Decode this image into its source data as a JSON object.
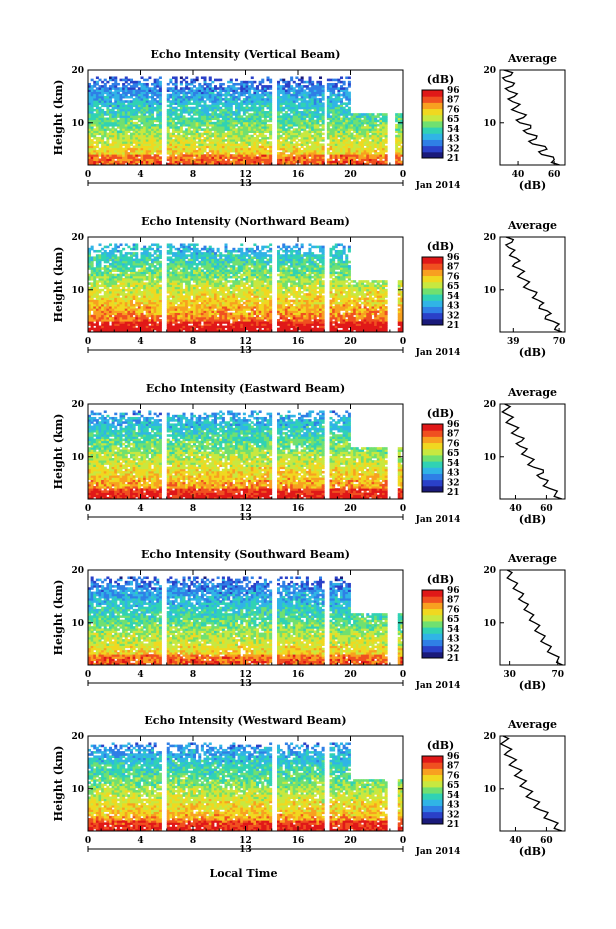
{
  "colorbar": {
    "unit": "(dB)",
    "ticks": [
      "96",
      "87",
      "76",
      "65",
      "54",
      "43",
      "32",
      "21"
    ],
    "colors": [
      "#1a1a7a",
      "#2a40c8",
      "#2f7fe6",
      "#30b4e6",
      "#30d2b4",
      "#70e070",
      "#c8e840",
      "#f0d820",
      "#f8a020",
      "#f05020",
      "#e01818"
    ]
  },
  "x_axis": {
    "ticks": [
      "0",
      "4",
      "8",
      "12",
      "16",
      "20",
      "0"
    ],
    "date_day": "13",
    "date_suffix": "Jan 2014",
    "label": "Local Time"
  },
  "y_axis": {
    "label": "Height (km)",
    "ticks": [
      "20",
      "10"
    ]
  },
  "avg_xlabel": "(dB)",
  "avg_title": "Average",
  "chart_data": [
    {
      "type": "heatmap",
      "title": "Echo Intensity (Vertical Beam)",
      "xlabel": "",
      "ylabel": "Height (km)",
      "x_range_hours": [
        0,
        24
      ],
      "y_range_km": [
        2,
        20
      ],
      "data_gaps_hours": [
        [
          5.6,
          5.9
        ],
        [
          14.0,
          14.3
        ],
        [
          18.0,
          18.2
        ],
        [
          22.8,
          23.4
        ]
      ],
      "avg_profile": {
        "xticks": [
          "40",
          "60"
        ],
        "xlim": [
          30,
          66
        ],
        "height_km": [
          2,
          3,
          4,
          5,
          6,
          7,
          8,
          9,
          10,
          11,
          12,
          13,
          14,
          15,
          16,
          17,
          18,
          19,
          20
        ],
        "values_db": [
          63,
          60,
          53,
          56,
          48,
          50,
          45,
          47,
          41,
          43,
          40,
          39,
          37,
          38,
          35,
          37,
          33,
          36,
          32
        ]
      }
    },
    {
      "type": "heatmap",
      "title": "Echo Intensity (Northward Beam)",
      "xlabel": "",
      "ylabel": "Height (km)",
      "x_range_hours": [
        0,
        24
      ],
      "y_range_km": [
        2,
        20
      ],
      "data_gaps_hours": [
        [
          5.6,
          5.9
        ],
        [
          14.0,
          14.3
        ],
        [
          18.0,
          18.3
        ],
        [
          22.8,
          23.5
        ]
      ],
      "avg_profile": {
        "xticks": [
          "39",
          "70"
        ],
        "xlim": [
          30,
          74
        ],
        "height_km": [
          2,
          3,
          4,
          5,
          6,
          7,
          8,
          9,
          10,
          11,
          12,
          13,
          14,
          15,
          16,
          17,
          18,
          19,
          20
        ],
        "values_db": [
          72,
          68,
          66,
          61,
          62,
          57,
          56,
          54,
          50,
          48,
          46,
          44,
          43,
          40,
          41,
          38,
          36,
          38,
          34
        ]
      }
    },
    {
      "type": "heatmap",
      "title": "Echo Intensity (Eastward Beam)",
      "xlabel": "",
      "ylabel": "Height (km)",
      "x_range_hours": [
        0,
        24
      ],
      "y_range_km": [
        2,
        20
      ],
      "data_gaps_hours": [
        [
          5.6,
          5.9
        ],
        [
          14.0,
          14.3
        ],
        [
          18.0,
          18.3
        ],
        [
          22.8,
          23.5
        ]
      ],
      "avg_profile": {
        "xticks": [
          "40",
          "60"
        ],
        "xlim": [
          30,
          72
        ],
        "height_km": [
          2,
          3,
          4,
          5,
          6,
          7,
          8,
          9,
          10,
          11,
          12,
          13,
          14,
          15,
          16,
          17,
          18,
          19,
          20
        ],
        "values_db": [
          70,
          66,
          62,
          60,
          56,
          58,
          52,
          50,
          48,
          46,
          43,
          44,
          41,
          40,
          38,
          36,
          35,
          34,
          33
        ]
      }
    },
    {
      "type": "heatmap",
      "title": "Echo Intensity (Southward Beam)",
      "xlabel": "",
      "ylabel": "Height (km)",
      "x_range_hours": [
        0,
        24
      ],
      "y_range_km": [
        2,
        20
      ],
      "data_gaps_hours": [
        [
          5.6,
          5.9
        ],
        [
          14.0,
          14.3
        ],
        [
          18.0,
          18.3
        ],
        [
          22.8,
          23.5
        ]
      ],
      "avg_profile": {
        "xticks": [
          "30",
          "70"
        ],
        "xlim": [
          22,
          76
        ],
        "height_km": [
          2,
          3,
          4,
          5,
          6,
          7,
          8,
          9,
          10,
          11,
          12,
          13,
          14,
          15,
          16,
          17,
          18,
          19,
          20
        ],
        "values_db": [
          74,
          70,
          66,
          63,
          60,
          58,
          55,
          53,
          51,
          48,
          46,
          44,
          41,
          40,
          37,
          35,
          32,
          30,
          28
        ]
      }
    },
    {
      "type": "heatmap",
      "title": "Echo Intensity (Westward Beam)",
      "xlabel": "",
      "ylabel": "Height (km)",
      "x_range_hours": [
        0,
        24
      ],
      "y_range_km": [
        2,
        20
      ],
      "data_gaps_hours": [
        [
          5.6,
          5.9
        ],
        [
          14.0,
          14.3
        ],
        [
          18.0,
          18.3
        ],
        [
          22.8,
          23.5
        ]
      ],
      "avg_profile": {
        "xticks": [
          "40",
          "60"
        ],
        "xlim": [
          30,
          72
        ],
        "height_km": [
          2,
          3,
          4,
          5,
          6,
          7,
          8,
          9,
          10,
          11,
          12,
          13,
          14,
          15,
          16,
          17,
          18,
          19,
          20
        ],
        "values_db": [
          70,
          66,
          63,
          60,
          56,
          54,
          51,
          49,
          47,
          45,
          43,
          42,
          40,
          38,
          37,
          35,
          34,
          33,
          32
        ]
      }
    }
  ]
}
